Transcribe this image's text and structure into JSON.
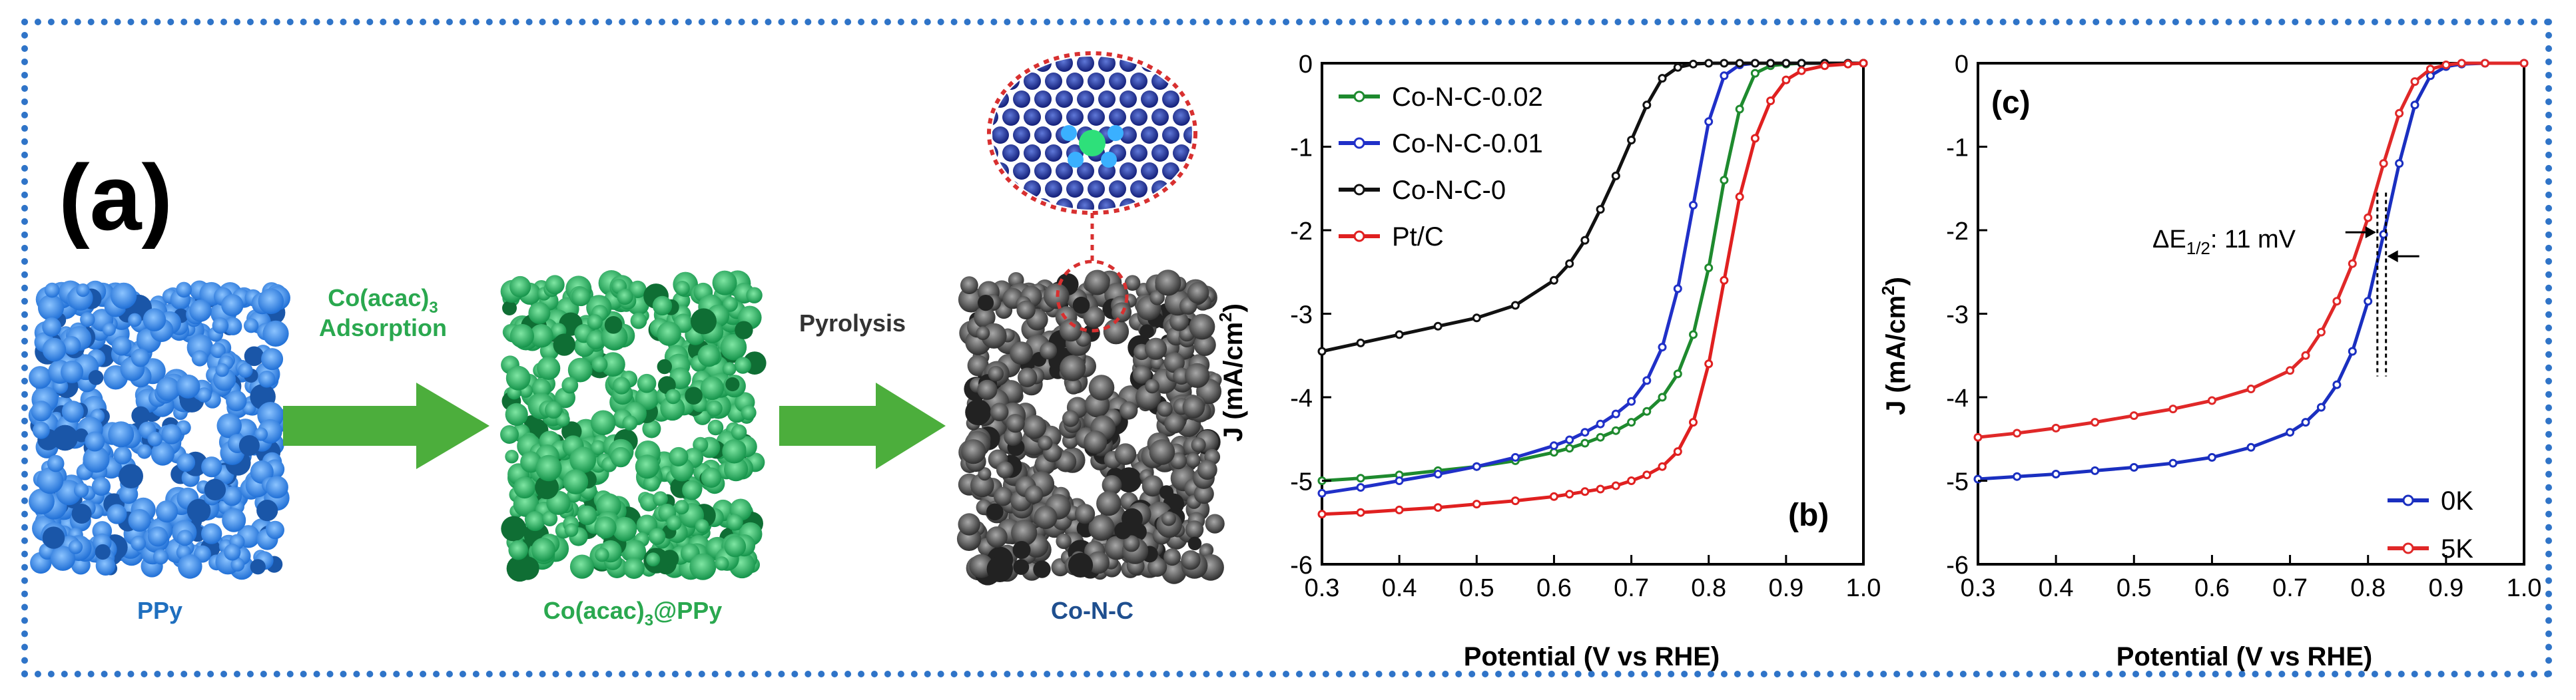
{
  "panel_a": {
    "label": "(a)",
    "stage1_label": "PPy",
    "step1_label_line1": "Co(acac)",
    "step1_label_sub": "3",
    "step1_label_line2": "Adsorption",
    "stage2_label_main": "Co(acac)",
    "stage2_label_sub": "3",
    "stage2_label_tail": "@PPy",
    "step2_label": "Pyrolysis",
    "stage3_label": "Co-N-C",
    "colors": {
      "ppy": "#3d8ee6",
      "coacac": "#2fb866",
      "conc": "#555555",
      "arrow": "#4cae3c",
      "label_blue": "#1f6fbf",
      "label_green": "#2aa84f"
    }
  },
  "chart_data": [
    {
      "panel": "(b)",
      "type": "line",
      "xlabel": "Potential (V vs RHE)",
      "ylabel_main": "J (mA/cm",
      "ylabel_sup": "2",
      "ylabel_tail": ")",
      "xlim": [
        0.3,
        1.0
      ],
      "ylim": [
        -6,
        0
      ],
      "xticks": [
        "0.3",
        "0.4",
        "0.5",
        "0.6",
        "0.7",
        "0.8",
        "0.9",
        "1.0"
      ],
      "yticks": [
        "0",
        "-1",
        "-2",
        "-3",
        "-4",
        "-5",
        "-6"
      ],
      "legend_position": "top-left",
      "x": [
        0.3,
        0.35,
        0.4,
        0.45,
        0.5,
        0.55,
        0.6,
        0.62,
        0.64,
        0.66,
        0.68,
        0.7,
        0.72,
        0.74,
        0.76,
        0.78,
        0.8,
        0.82,
        0.84,
        0.86,
        0.88,
        0.9,
        0.92,
        0.95,
        0.98,
        1.0
      ],
      "series": [
        {
          "name": "Co-N-C-0.02",
          "color": "#1e8a2e",
          "values": [
            -5.0,
            -4.97,
            -4.93,
            -4.88,
            -4.83,
            -4.76,
            -4.66,
            -4.61,
            -4.55,
            -4.48,
            -4.4,
            -4.3,
            -4.17,
            -4.0,
            -3.72,
            -3.25,
            -2.45,
            -1.4,
            -0.55,
            -0.12,
            -0.03,
            -0.01,
            0.0,
            0.0,
            0.0,
            0.0
          ]
        },
        {
          "name": "Co-N-C-0.01",
          "color": "#2030c8",
          "values": [
            -5.15,
            -5.08,
            -5.0,
            -4.92,
            -4.83,
            -4.72,
            -4.58,
            -4.51,
            -4.42,
            -4.32,
            -4.2,
            -4.05,
            -3.8,
            -3.4,
            -2.7,
            -1.7,
            -0.7,
            -0.15,
            -0.02,
            0.0,
            0.0,
            0.0,
            0.0,
            0.0,
            0.0,
            0.0
          ]
        },
        {
          "name": "Co-N-C-0",
          "color": "#111111",
          "values": [
            -3.45,
            -3.35,
            -3.25,
            -3.15,
            -3.05,
            -2.9,
            -2.6,
            -2.4,
            -2.12,
            -1.75,
            -1.35,
            -0.92,
            -0.5,
            -0.18,
            -0.05,
            -0.01,
            0.0,
            0.0,
            0.0,
            0.0,
            0.0,
            0.0,
            0.0,
            0.0,
            0.0,
            0.0
          ]
        },
        {
          "name": "Pt/C",
          "color": "#e02020",
          "values": [
            -5.4,
            -5.38,
            -5.35,
            -5.32,
            -5.28,
            -5.24,
            -5.19,
            -5.16,
            -5.13,
            -5.1,
            -5.06,
            -5.0,
            -4.93,
            -4.83,
            -4.65,
            -4.3,
            -3.6,
            -2.6,
            -1.6,
            -0.9,
            -0.45,
            -0.2,
            -0.09,
            -0.03,
            -0.01,
            0.0
          ]
        }
      ]
    },
    {
      "panel": "(c)",
      "type": "line",
      "xlabel": "Potential (V vs RHE)",
      "ylabel_main": "J (mA/cm",
      "ylabel_sup": "2",
      "ylabel_tail": ")",
      "xlim": [
        0.3,
        1.0
      ],
      "ylim": [
        -6,
        0
      ],
      "xticks": [
        "0.3",
        "0.4",
        "0.5",
        "0.6",
        "0.7",
        "0.8",
        "0.9",
        "1.0"
      ],
      "yticks": [
        "0",
        "-1",
        "-2",
        "-3",
        "-4",
        "-5",
        "-6"
      ],
      "legend_position": "bottom-right",
      "annotation_main": "ΔE",
      "annotation_sub": "1/2",
      "annotation_tail": ": 11 mV",
      "x": [
        0.3,
        0.35,
        0.4,
        0.45,
        0.5,
        0.55,
        0.6,
        0.65,
        0.7,
        0.72,
        0.74,
        0.76,
        0.78,
        0.8,
        0.82,
        0.84,
        0.86,
        0.88,
        0.9,
        0.92,
        0.95,
        1.0
      ],
      "series": [
        {
          "name": "0K",
          "color": "#1a2fc0",
          "values": [
            -4.98,
            -4.95,
            -4.92,
            -4.88,
            -4.84,
            -4.79,
            -4.72,
            -4.6,
            -4.42,
            -4.3,
            -4.12,
            -3.85,
            -3.45,
            -2.85,
            -2.05,
            -1.2,
            -0.5,
            -0.15,
            -0.04,
            -0.01,
            0.0,
            0.0
          ]
        },
        {
          "name": "5K",
          "color": "#e02828",
          "values": [
            -4.48,
            -4.43,
            -4.37,
            -4.3,
            -4.22,
            -4.14,
            -4.04,
            -3.9,
            -3.68,
            -3.5,
            -3.22,
            -2.85,
            -2.4,
            -1.85,
            -1.2,
            -0.6,
            -0.22,
            -0.07,
            -0.02,
            0.0,
            0.0,
            0.0
          ]
        }
      ]
    }
  ]
}
